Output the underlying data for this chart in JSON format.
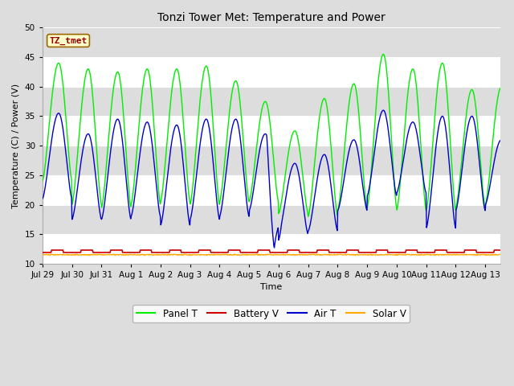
{
  "title": "Tonzi Tower Met: Temperature and Power",
  "xlabel": "Time",
  "ylabel": "Temperature (C) / Power (V)",
  "annotation_text": "TZ_tmet",
  "annotation_bg": "#ffffcc",
  "annotation_border": "#996600",
  "annotation_text_color": "#990000",
  "ylim": [
    10,
    50
  ],
  "xlim_days": 15.5,
  "n_points": 960,
  "bg_color": "#dddddd",
  "plot_bg_color": "#dddddd",
  "grid_color": "#ffffff",
  "panel_t_color": "#00ee00",
  "battery_v_color": "#cc0000",
  "air_t_color": "#0000cc",
  "solar_v_color": "#ffaa00",
  "legend_labels": [
    "Panel T",
    "Battery V",
    "Air T",
    "Solar V"
  ],
  "x_tick_labels": [
    "Jul 29",
    "Jul 30",
    "Jul 31",
    "Aug 1",
    "Aug 2",
    "Aug 3",
    "Aug 4",
    "Aug 5",
    "Aug 6",
    "Aug 7",
    "Aug 8",
    "Aug 9",
    "Aug 10",
    "Aug 11",
    "Aug 12",
    "Aug 13"
  ],
  "x_tick_positions": [
    0,
    1,
    2,
    3,
    4,
    5,
    6,
    7,
    8,
    9,
    10,
    11,
    12,
    13,
    14,
    15
  ],
  "yticks": [
    10,
    15,
    20,
    25,
    30,
    35,
    40,
    45,
    50
  ],
  "panel_peaks": [
    44,
    43,
    42.5,
    43,
    43,
    43.5,
    41,
    37.5,
    32.5,
    38,
    40.5,
    45.5,
    43,
    44,
    39.5,
    40
  ],
  "panel_lows": [
    24,
    20,
    19.5,
    20,
    20.5,
    20,
    20.5,
    20.5,
    18.5,
    18,
    19,
    19.5,
    19,
    19,
    19.5,
    20
  ],
  "air_peaks": [
    35.5,
    32,
    34.5,
    34,
    33.5,
    34.5,
    34.5,
    32,
    27,
    28.5,
    31,
    36,
    34,
    35,
    35,
    31
  ],
  "air_lows": [
    21,
    17.5,
    17.5,
    18,
    16.5,
    17.5,
    18,
    19,
    15,
    15.5,
    19,
    21.5,
    22,
    16,
    19,
    20
  ],
  "air_special_dip_day": 7.85,
  "air_special_dip_val": 12.5,
  "battery_mean": 12.0,
  "solar_mean": 11.5
}
